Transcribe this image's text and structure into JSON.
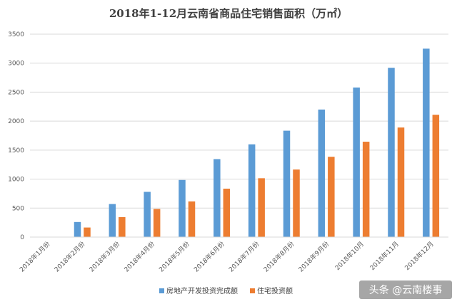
{
  "chart_data": {
    "type": "bar",
    "title": "2018年1-12月云南省商品住宅销售面积（万㎡）",
    "categories": [
      "2018年1月份",
      "2018年2月份",
      "2018年3月份",
      "2018年4月份",
      "2018年5月份",
      "2018年6月份",
      "2018年7月份",
      "2018年8月份",
      "2018年9月份",
      "2018年10月",
      "2018年11月",
      "2018年12月"
    ],
    "series": [
      {
        "name": "房地产开发投资完成额",
        "color": "#5B9BD5",
        "values": [
          null,
          260,
          570,
          780,
          985,
          1345,
          1600,
          1835,
          2200,
          2580,
          2920,
          3250
        ]
      },
      {
        "name": "住宅投资额",
        "color": "#ED7D31",
        "values": [
          null,
          165,
          345,
          485,
          615,
          835,
          1015,
          1165,
          1385,
          1645,
          1890,
          2110
        ]
      }
    ],
    "ylim": [
      0,
      3500
    ],
    "yticks": [
      0,
      500,
      1000,
      1500,
      2000,
      2500,
      3000,
      3500
    ],
    "grid": true,
    "legend": "bottom-center"
  },
  "watermark": "头条 @云南楼事"
}
